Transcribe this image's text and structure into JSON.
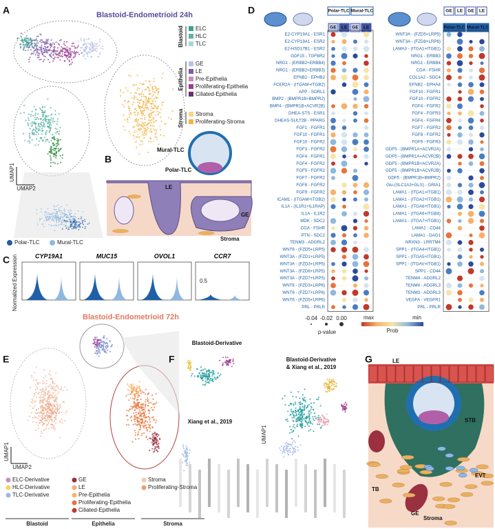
{
  "panel_a": {
    "letter": "A",
    "title": "Blastoid-Endometrioid 24h",
    "axis_x": "UMAP2",
    "axis_y": "UMAP1",
    "legend": [
      {
        "group": "Blastoid",
        "items": [
          "ELC",
          "HLC",
          "TLC"
        ]
      },
      {
        "group": "Epithelia",
        "items": [
          "GE",
          "LE",
          "Pre-Epithelia",
          "Proliferating-Epithelia",
          "Ciliated-Epithelia"
        ]
      },
      {
        "group": "Stroma",
        "items": [
          "Stroma",
          "Proliferating-Stroma"
        ]
      }
    ],
    "tlc_legend": [
      "Polar-TLC",
      "Mural-TLC"
    ]
  },
  "panel_b": {
    "letter": "B",
    "labels": [
      "Mural-TLC",
      "Polar-TLC",
      "LE",
      "GE",
      "Stroma"
    ]
  },
  "panel_c": {
    "letter": "C",
    "axis_y": "Normalized Expression",
    "genes": [
      "CYP19A1",
      "MUC15",
      "OVOL1",
      "CCR7"
    ],
    "tick": "0.5"
  },
  "panel_d": {
    "letter": "D",
    "left": {
      "headers": [
        "Polar-TLC",
        "Mural-TLC"
      ],
      "columns": [
        "GE",
        "LE",
        "GE",
        "LE"
      ],
      "rows": [
        "E2-CYP19A1 - ESR1",
        "E2-CYP19A1 - ESR2",
        "E2-HSD17B1 - ESR2",
        "GDF15 - TGFBR2",
        "NRG1 - (ERBB2+ERBB4)",
        "NRG1 - (ERBB2+ERBB3)",
        "EFNB2 - EPHB2",
        "FCER2A - (ITGAM+ITGB2)",
        "APP - SORL1",
        "BMP2 - (BMPR1B+BMPR2)",
        "BMP4 - (BMPR1B+ACVR2B)",
        "DHEA-STS - ESR1",
        "DHEAS-SULT2B - PPARG",
        "FGF1 - FGFR1",
        "FGF10 - FGFR1",
        "FGF10 - FGFR2",
        "FGF3 - FGFR2",
        "FGF4 - FGFR1",
        "FGF4 - FGFR2",
        "FGF5 - FGFR2",
        "FGF7 - FGFR2",
        "FGF8 - FGFR2",
        "FGF9 - FGFR2",
        "ICAM1 - (ITGAM+ITGB2)",
        "IL1A - (IL1R1+IL1RAP)",
        "IL1A - IL1R2",
        "MDK - SDC2",
        "CGA - FSHR",
        "PTN - SDC2",
        "TENM3 - ADGRL2",
        "WNT6 - (FZD5+LRP5)",
        "WNT3A - (FZD1+LRP5)",
        "WNT3A - (FZD3+LRP5)",
        "WNT3A - (FZD6+LRP5)",
        "WNT3A - (FZD7+LRP5)",
        "WNT6 - (FZD3+LRP6)",
        "WNT6 - (FZD7+LRP6)",
        "WNT6 - (FZD5+LRP6)",
        "PRL - PRLR"
      ]
    },
    "right": {
      "headers": [
        "Polar-TLC",
        "Mural-TLC"
      ],
      "columns": [
        "GE",
        "LE",
        "GE",
        "LE"
      ],
      "rows": [
        "WNT3A - (FZD5+LRP5)",
        "WNT3A - (FZD8+LRP6)",
        "LAMA3 - (ITGA1+ITGB1)",
        "NRG1 - ERBB3",
        "NRG1 - ERBB4",
        "CGA - FSHR",
        "COL1A2 - SDC4",
        "EFNB2 - EPHA4",
        "FGF10 - FGFR1",
        "FGF10 - FGFR2",
        "FGF4 - FGFR2",
        "FGF4 - FGFR3",
        "FGF4 - FGFR4",
        "FGF7 - FGFR2",
        "FGF8 - FGFR2",
        "FGF9 - FGFR3",
        "GDF5 - (BMPR1A+ACVR2A)",
        "GDF5 - (BMPR1A+ACVR2B)",
        "GDF5 - (BMPR1B+ACVR2A)",
        "GDF5 - (BMPR1B+ACVR2B)",
        "GDF5 - (BMPR1B+BMPR2)",
        "Glu-(SLC1A3+GLS) - GRIA1",
        "LAMA1 - (ITGA1+ITGB1)",
        "LAMA1 - (ITGA2+ITGB1)",
        "LAMA1 - (ITGA6+ITGB1)",
        "LAMA1 - (ITGA6+ITGB4)",
        "LAMA1 - (ITGA7+ITGB1)",
        "LAMA1 - CD44",
        "LAMA1 - DAG1",
        "NRXN3 - LRRTM4",
        "SPP1 - (ITGA4+ITGB1)",
        "SPP1 - (ITGA5+ITGB1)",
        "SPP1 - (ITGAV+ITGB1)",
        "SPP1 - CD44",
        "TENM4 - ADGRL2",
        "TENM4 - ADGRL3",
        "TENM3 - ADGRL3",
        "VEGFA - VEGFR1",
        "PRL - PRLR"
      ]
    },
    "pvalue_legend": {
      "title": "p-value",
      "ticks": [
        "-0.04",
        "-0.02",
        "0.00"
      ]
    },
    "prob_legend": {
      "title": "Prob",
      "ends": [
        "max",
        "min"
      ]
    }
  },
  "panel_e": {
    "letter": "E",
    "title": "Blastoid-Endometrioid 72h",
    "axis_x": "UMAP2",
    "axis_y": "UMAP1",
    "legend": [
      {
        "group": "Blastoid",
        "items": [
          "ELC-Derivative",
          "HLC-Derivative",
          "TLC-Derivative"
        ]
      },
      {
        "group": "Epithelia",
        "items": [
          "GE",
          "LE",
          "Pre-Epithelia",
          "Proliferating-Epithelia",
          "Ciliated-Epithelia"
        ]
      },
      {
        "group": "Stroma",
        "items": [
          "Stroma",
          "Proliferating-Stroma"
        ]
      }
    ]
  },
  "panel_f": {
    "letter": "F",
    "labels": [
      "Blastoid-Derivative",
      "Xiang et al., 2019",
      "Blastoid-Derivative",
      "& Xiang et al., 2019"
    ],
    "axis_y": "UMAP1"
  },
  "panel_g": {
    "letter": "G",
    "labels": [
      "LE",
      "STB",
      "EVT",
      "TB",
      "GE",
      "Stroma"
    ]
  }
}
